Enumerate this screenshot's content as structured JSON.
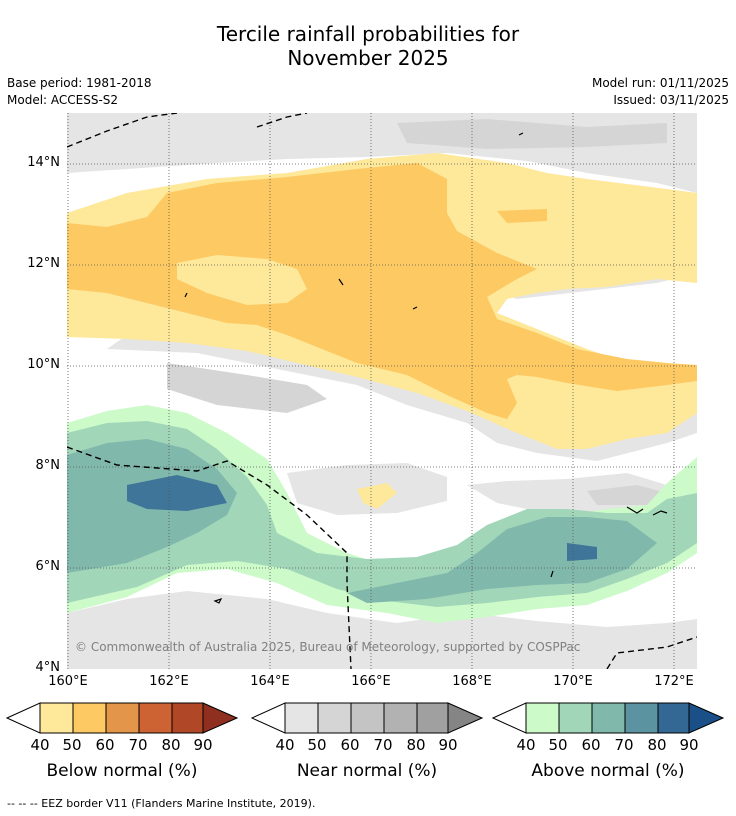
{
  "title": {
    "line1": "Tercile rainfall probabilities for",
    "line2": "November 2025"
  },
  "meta": {
    "base_period": "Base period: 1981-2018",
    "model": "Model: ACCESS-S2",
    "model_run": "Model run: 01/11/2025",
    "issued": "Issued: 03/11/2025"
  },
  "axes": {
    "lat_labels": [
      "14°N",
      "12°N",
      "10°N",
      "8°N",
      "6°N",
      "4°N"
    ],
    "lon_labels": [
      "160°E",
      "162°E",
      "164°E",
      "166°E",
      "168°E",
      "170°E",
      "172°E"
    ]
  },
  "copyright": "© Commonwealth of Australia 2025, Bureau of Meteorology, supported by COSPPac",
  "colorbars": {
    "below": {
      "title": "Below normal (%)",
      "ticks": [
        "40",
        "50",
        "60",
        "70",
        "80",
        "90"
      ],
      "colors": [
        "#fee89a",
        "#fdc963",
        "#e3964a",
        "#cd6233",
        "#b04727",
        "#8e2f1f"
      ]
    },
    "near": {
      "title": "Near normal (%)",
      "ticks": [
        "40",
        "50",
        "60",
        "70",
        "80",
        "90"
      ],
      "colors": [
        "#e5e5e5",
        "#d5d5d5",
        "#c4c4c4",
        "#b2b2b2",
        "#a0a0a0",
        "#858585"
      ]
    },
    "above": {
      "title": "Above normal (%)",
      "ticks": [
        "40",
        "50",
        "60",
        "70",
        "80",
        "90"
      ],
      "colors": [
        "#ccfac9",
        "#a2d6b9",
        "#80b8ac",
        "#5b93a1",
        "#336895",
        "#1b4f87"
      ]
    }
  },
  "footer": "-- -- -- EEZ border V11 (Flanders Marine Institute, 2019)."
}
